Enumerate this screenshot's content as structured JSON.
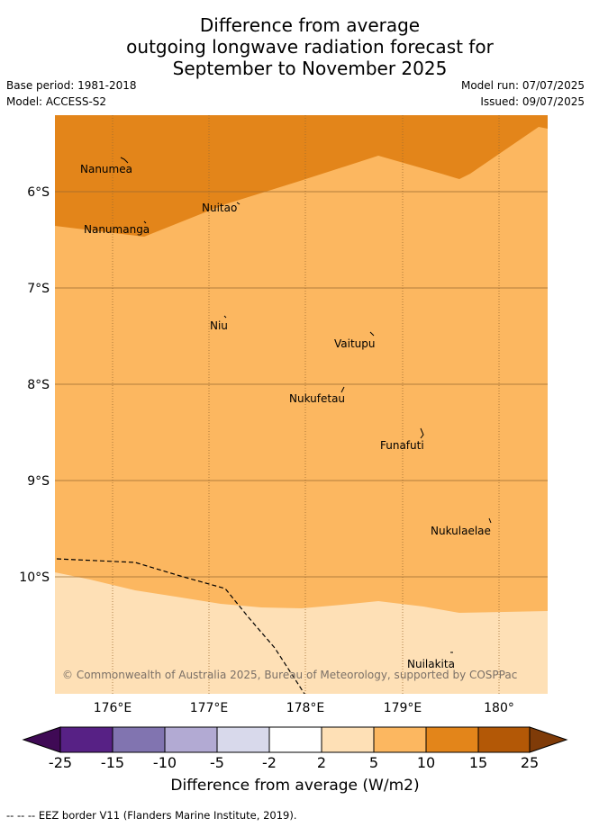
{
  "header": {
    "title_lines": [
      "Difference from average",
      "outgoing longwave radiation forecast for",
      "September to November 2025"
    ],
    "base_period": "Base period: 1981-2018",
    "model": "Model: ACCESS-S2",
    "model_run": "Model run: 07/07/2025",
    "issued": "Issued: 09/07/2025"
  },
  "map": {
    "lat_labels": [
      "6°S",
      "7°S",
      "8°S",
      "9°S",
      "10°S"
    ],
    "lon_labels": [
      "176°E",
      "177°E",
      "178°E",
      "179°E",
      "180°"
    ],
    "places": [
      "Nanumea",
      "Nuitao",
      "Nanumanga",
      "Niu",
      "Vaitupu",
      "Nukufetau",
      "Funafuti",
      "Nukulaelae",
      "Nuilakita"
    ],
    "copyright": "© Commonwealth of Australia 2025, Bureau of Meteorology, supported by COSPPac",
    "colors": {
      "band_10_15": "#e3851a",
      "band_5_10": "#fcb760",
      "band_2_5": "#fee0b6",
      "grid": "#9a6a30"
    }
  },
  "legend": {
    "ticks": [
      "-25",
      "-15",
      "-10",
      "-5",
      "-2",
      "2",
      "5",
      "10",
      "15",
      "25"
    ],
    "colors": [
      "#3f0a55",
      "#572185",
      "#8174b0",
      "#b2aad3",
      "#d8d9eb",
      "#ffffff",
      "#fee0b6",
      "#fcb760",
      "#e3851a",
      "#b35806",
      "#7f3b08"
    ],
    "title": "Difference from average (W/m2)"
  },
  "footnote": "-- -- -- EEZ border V11 (Flanders Marine Institute, 2019)."
}
